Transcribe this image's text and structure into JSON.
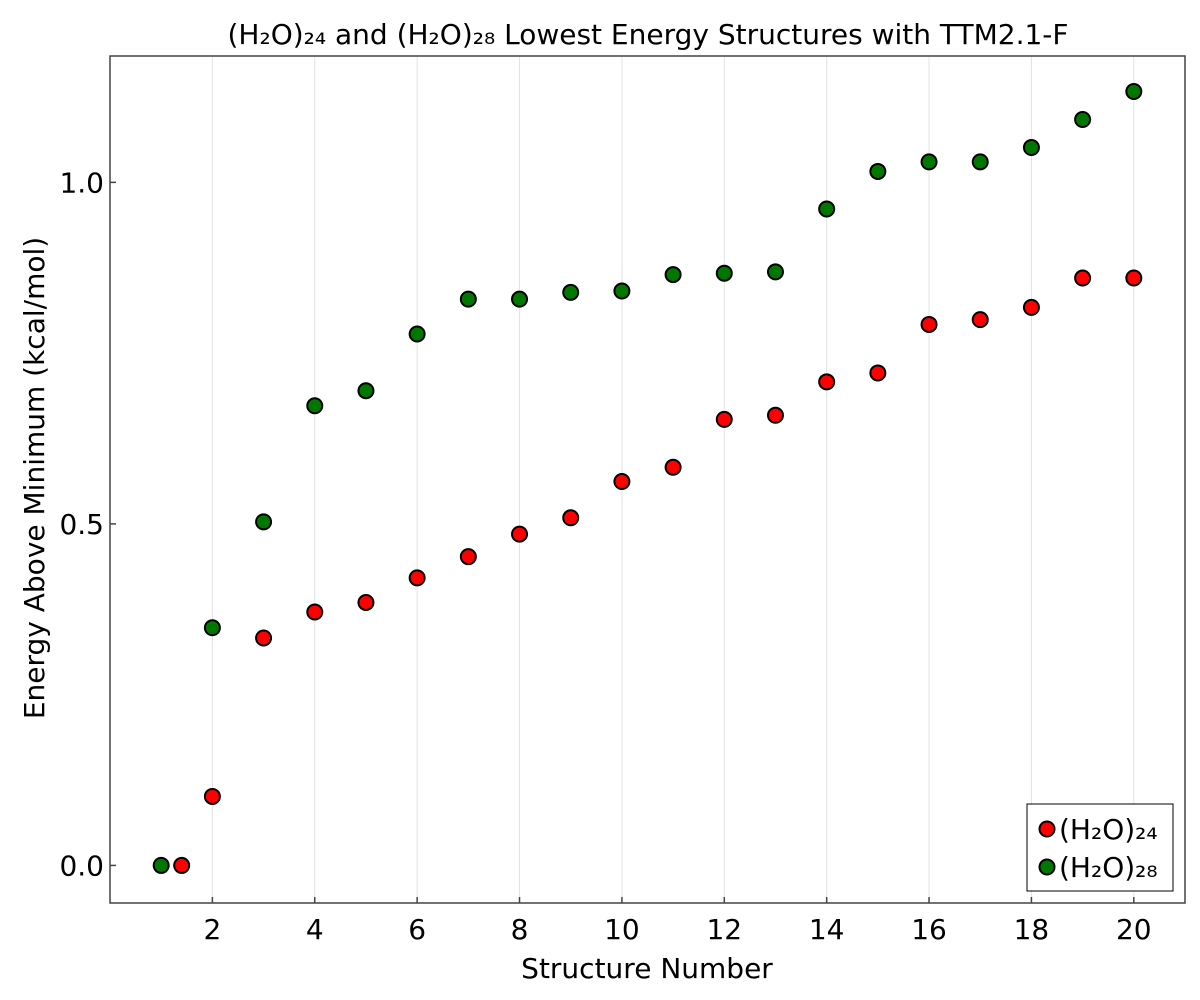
{
  "chart_data": {
    "type": "scatter",
    "title": "(H₂O)₂₄ and (H₂O)₂₈ Lowest Energy Structures with TTM2.1-F",
    "xlabel": "Structure Number",
    "ylabel": "Energy Above Minimum (kcal/mol)",
    "xlim": [
      0,
      21
    ],
    "ylim": [
      -0.055,
      1.185
    ],
    "xticks": [
      2,
      4,
      6,
      8,
      10,
      12,
      14,
      16,
      18,
      20
    ],
    "xtick_labels": [
      "2",
      "4",
      "6",
      "8",
      "10",
      "12",
      "14",
      "16",
      "18",
      "20"
    ],
    "yticks": [
      0.0,
      0.5,
      1.0
    ],
    "ytick_labels": [
      "0.0",
      "0.5",
      "1.0"
    ],
    "grid": "vertical",
    "legend_position": "bottom-right",
    "series": [
      {
        "name": "(H₂O)₂₄",
        "color": "#ff0000",
        "x": [
          1.4,
          2,
          3,
          4,
          5,
          6,
          7,
          8,
          9,
          10,
          11,
          12,
          13,
          14,
          15,
          16,
          17,
          18,
          19,
          20
        ],
        "y": [
          0.0,
          0.101,
          0.333,
          0.371,
          0.385,
          0.421,
          0.452,
          0.485,
          0.509,
          0.562,
          0.583,
          0.653,
          0.659,
          0.708,
          0.721,
          0.792,
          0.799,
          0.817,
          0.86,
          0.86
        ]
      },
      {
        "name": "(H₂O)₂₈",
        "color": "#007800",
        "x": [
          1,
          2,
          3,
          4,
          5,
          6,
          7,
          8,
          9,
          10,
          11,
          12,
          13,
          14,
          15,
          16,
          17,
          18,
          19,
          20
        ],
        "y": [
          0.0,
          0.348,
          0.503,
          0.673,
          0.695,
          0.778,
          0.829,
          0.829,
          0.839,
          0.841,
          0.865,
          0.867,
          0.869,
          0.961,
          1.016,
          1.03,
          1.03,
          1.051,
          1.092,
          1.133
        ]
      }
    ]
  }
}
